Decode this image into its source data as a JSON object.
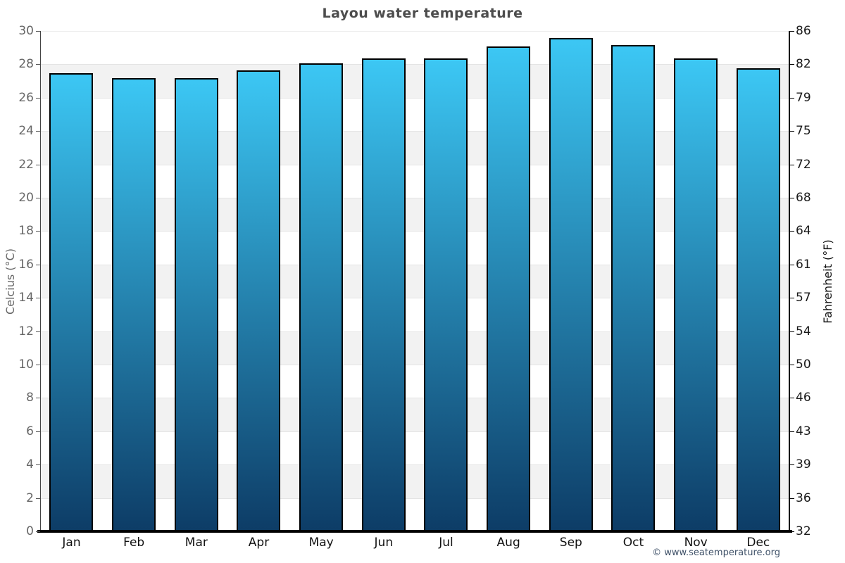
{
  "title": "Layou water temperature",
  "chart_data": {
    "type": "bar",
    "title": "Layou water temperature",
    "categories": [
      "Jan",
      "Feb",
      "Mar",
      "Apr",
      "May",
      "Jun",
      "Jul",
      "Aug",
      "Sep",
      "Oct",
      "Nov",
      "Dec"
    ],
    "values": [
      27.5,
      27.2,
      27.2,
      27.7,
      28.1,
      28.4,
      28.4,
      29.1,
      29.6,
      29.2,
      28.4,
      27.8
    ],
    "series_name": "Water temperature (°C)",
    "ylabel_left": "Celcius (°C)",
    "ylabel_right": "Fahrenheit (°F)",
    "xlabel": "",
    "ylim": [
      0,
      30
    ],
    "yticks_celsius": [
      30,
      28,
      26,
      24,
      22,
      20,
      18,
      16,
      14,
      12,
      10,
      8,
      6,
      4,
      2,
      0
    ],
    "yticks_fahrenheit": [
      86,
      82,
      79,
      75,
      72,
      68,
      64,
      61,
      57,
      54,
      50,
      46,
      43,
      39,
      36,
      32
    ],
    "grid": "alternating horizontal bands every 2°C",
    "legend": "none"
  },
  "colors": {
    "bar_gradient_top": "#3cc7f4",
    "bar_gradient_bottom": "#0d3c66",
    "bar_border": "#000000",
    "band_gray": "#f2f2f2",
    "band_white": "#ffffff",
    "gridline": "#e4e4e4",
    "title_text": "#4d4d4d",
    "left_axis_text": "#666666",
    "right_axis_text": "#1a1a1a",
    "month_text": "#111111",
    "copyright_text": "#3f5168"
  },
  "footer": {
    "copyright": "© www.seatemperature.org"
  }
}
